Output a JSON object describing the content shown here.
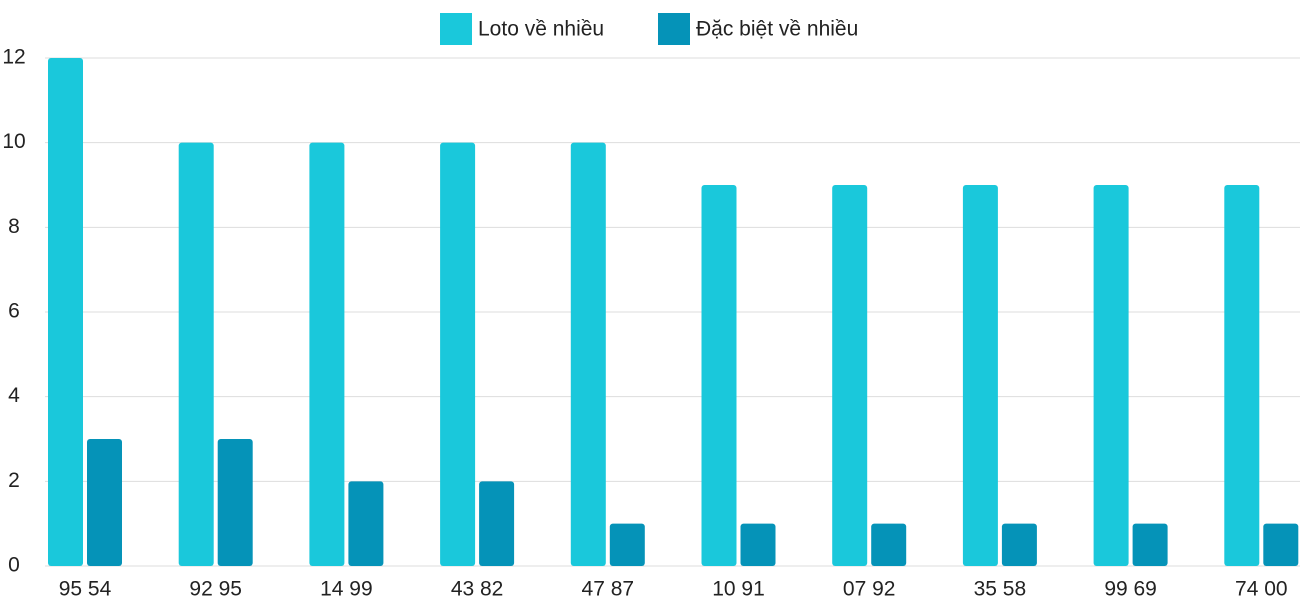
{
  "chart_data": {
    "type": "bar",
    "categories": [
      "95 54",
      "92 95",
      "14 99",
      "43 82",
      "47 87",
      "10 91",
      "07 92",
      "35 58",
      "99 69",
      "74 00"
    ],
    "series": [
      {
        "name": "Loto về nhiều",
        "color": "#1ac8db",
        "values": [
          12,
          10,
          10,
          10,
          10,
          9,
          9,
          9,
          9,
          9
        ]
      },
      {
        "name": "Đặc biệt về nhiều",
        "color": "#0593b8",
        "values": [
          3,
          3,
          2,
          2,
          1,
          1,
          1,
          1,
          1,
          1
        ]
      }
    ],
    "ylim": [
      0,
      12
    ],
    "yticks": [
      0,
      2,
      4,
      6,
      8,
      10,
      12
    ],
    "grid": true,
    "legend": "top"
  }
}
